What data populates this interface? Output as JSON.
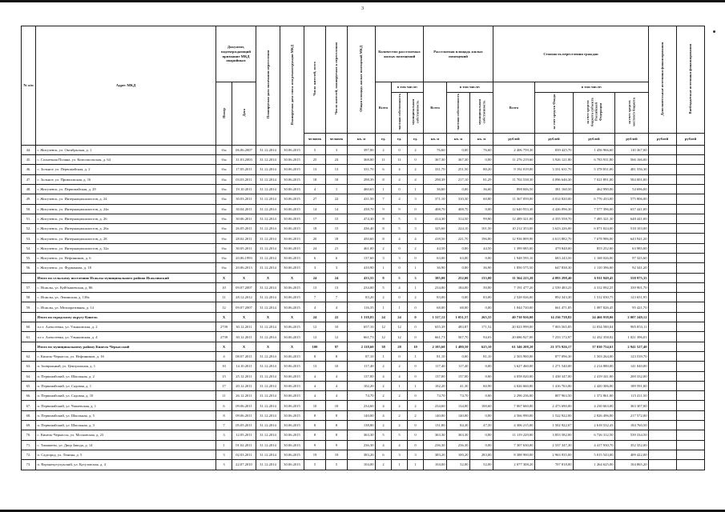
{
  "page": {
    "number": "3"
  },
  "table": {
    "headers": {
      "num": "№ п/п",
      "address": "Адрес МКД",
      "doc_group": "Документ, подтверждающий признание МКД аварийным",
      "doc_number": "Номер",
      "doc_date": "Дата",
      "planned_end_date": "Планируемая дата окончания переселения",
      "planned_demolition_date": "Планируемая дата сноса или реконструкции МКД",
      "residents_total": "Число жителей, всего",
      "residents_planned": "Число жителей, планируемых к переселению",
      "mkd_area": "Общая площадь жилых помещений МКД",
      "count_group": "Количество расселяемых жилых помещений",
      "area_group": "Расселяемая площадь жилых помещений",
      "cost_group": "Стоимость переселения граждан",
      "vsego": "Всего",
      "incl": "в том числе:",
      "private_prop": "частная собственность",
      "municipal_prop": "муниципальная собственность",
      "cost_fund": "за счет средств Фонда",
      "cost_subject": "за счет средств бюджета субъекта Российской Федерации",
      "cost_local": "за счет средств местного бюджета",
      "additional_sources": "Дополнительные источники финансирования",
      "extrabudget_sources": "Внебюджетные источники финансирования",
      "unit_person": "человек",
      "unit_sqm": "кв. м",
      "unit_ed": "ед.",
      "unit_rub": "рублей"
    },
    "rows": [
      {
        "n": "44.",
        "address": "г. Жигулевск, ул. Октябрьская, д. 1",
        "bold": false,
        "cells": [
          "б/н",
          "06.06.2007",
          "31.12.2014",
          "30.06.2015",
          "5",
          "3",
          "397,00",
          "2",
          "0",
          "2",
          "76,60",
          "0,00",
          "76,60",
          "2 406 759,30",
          "839 425,70",
          "1 456 966,60",
          "110 367,00",
          "",
          ""
        ]
      },
      {
        "n": "45.",
        "address": "с. Солнечная Поляна, ул. Комсомольская, д. 64",
        "bold": false,
        "cells": [
          "б/н",
          "31.03.2003",
          "31.12.2014",
          "30.06.2015",
          "25",
          "24",
          "368,00",
          "11",
          "11",
          "0",
          "367,30",
          "367,30",
          "0,00",
          "11 276 219,60",
          "3 926 121,80",
          "6 783 931,80",
          "566 166,00",
          "",
          ""
        ]
      },
      {
        "n": "46.",
        "address": "с. Зольное, ул. Первомайская, д. 2",
        "bold": false,
        "cells": [
          "б/н",
          "17.05.2011",
          "31.12.2014",
          "30.06.2015",
          "13",
          "13",
          "331,70",
          "6",
          "4",
          "2",
          "331,70",
          "251,50",
          "80,20",
          "9 192 019,00",
          "3 331 631,70",
          "5 378 831,00",
          "481 556,30",
          "",
          ""
        ]
      },
      {
        "n": "47.",
        "address": "с. Зольное, ул. Приволжская, д. 16",
        "bold": false,
        "cells": [
          "б/н",
          "03.03.2011",
          "31.12.2014",
          "30.06.2015",
          "18",
          "18",
          "298,39",
          "8",
          "4",
          "4",
          "298,39",
          "217,10",
          "81,29",
          "11 702 538,30",
          "4 096 646,30",
          "7 021 891,00",
          "584 001,00",
          "",
          ""
        ]
      },
      {
        "n": "48.",
        "address": "г. Жигулевск, ул. Первомайская, д. 29",
        "bold": false,
        "cells": [
          "б/н",
          "19.10.2011",
          "31.12.2014",
          "30.06.2015",
          "4",
          "1",
          "460,63",
          "1",
          "0",
          "1",
          "36,60",
          "0,00",
          "36,60",
          "898 846,50",
          "381 160,50",
          "462 990,00",
          "54 696,00",
          "",
          ""
        ]
      },
      {
        "n": "49.",
        "address": "г. Жигулевск, ул. Интернационалистов, д. 24",
        "bold": false,
        "cells": [
          "б/н",
          "30.03.2011",
          "31.12.2014",
          "30.06.2015",
          "27",
          "22",
          "431,50",
          "7",
          "4",
          "3",
          "371,10",
          "310,30",
          "60,80",
          "11 367 059,00",
          "4 014 820,00",
          "6 776 433,00",
          "575 806,00",
          "",
          ""
        ]
      },
      {
        "n": "50.",
        "address": "г. Жигулевск, ул. Интернационалистов, д. 24а",
        "bold": false,
        "cells": [
          "б/н",
          "30.04.2011",
          "31.12.2014",
          "30.06.2015",
          "14",
          "14",
          "438,70",
          "9",
          "9",
          "0",
          "408,70",
          "408,70",
          "0,00",
          "12 640 933,30",
          "4 426 096,30",
          "7 577 396,00",
          "637 441,00",
          "",
          ""
        ]
      },
      {
        "n": "51.",
        "address": "г. Жигулевск, ул. Интернационалистов, д. 26",
        "bold": false,
        "cells": [
          "б/н",
          "30.06.2011",
          "31.12.2014",
          "30.06.2015",
          "17",
          "15",
          "474,30",
          "8",
          "5",
          "3",
          "414,30",
          "314,50",
          "99,80",
          "12 489 321,00",
          "4 355 558,70",
          "7 485 321,30",
          "648 441,00",
          "",
          ""
        ]
      },
      {
        "n": "52.",
        "address": "г. Жигулевск, ул. Интернационалистов, д. 26а",
        "bold": false,
        "cells": [
          "б/н",
          "26.05.2011",
          "31.12.2014",
          "30.06.2015",
          "18",
          "15",
          "436,40",
          "8",
          "5",
          "3",
          "325,60",
          "224,10",
          "101,50",
          "10 212 353,00",
          "3 623 226,00",
          "6 071 024,00",
          "518 103,00",
          "",
          ""
        ]
      },
      {
        "n": "53.",
        "address": "г. Жигулевск, ул. Интернационалистов, д. 28",
        "bold": false,
        "cells": [
          "б/н",
          "28.02.2011",
          "31.12.2014",
          "30.06.2015",
          "20",
          "18",
          "450,60",
          "8",
          "4",
          "4",
          "418,50",
          "221,70",
          "196,80",
          "12 936 809,90",
          "4 613 882,70",
          "7 678 986,00",
          "643 941,20",
          "",
          ""
        ]
      },
      {
        "n": "54.",
        "address": "г. Жигулевск, ул. Интернационалистов, д. 32а",
        "bold": false,
        "cells": [
          "б/н",
          "30.05.2011",
          "31.12.2014",
          "30.06.2015",
          "24",
          "21",
          "461,00",
          "2",
          "0",
          "2",
          "44,50",
          "0,00",
          "44,50",
          "1 399 085,00",
          "479 848,00",
          "855 252,00",
          "63 985,00",
          "",
          ""
        ]
      },
      {
        "n": "55.",
        "address": "г. Жигулевск, ул. Нефтяников, д. 6",
        "bold": false,
        "cells": [
          "б/н",
          "20.06.1993",
          "31.12.2014",
          "30.06.2015",
          "6",
          "6",
          "137,60",
          "3",
          "3",
          "0",
          "63,00",
          "63,00",
          "0,00",
          "1 948 595,10",
          "683 243,50",
          "1 168 026,00",
          "97 325,60",
          "",
          ""
        ]
      },
      {
        "n": "56.",
        "address": "г. Жигулевск, ул. Фурманова, д. 18",
        "bold": false,
        "cells": [
          "б/н",
          "20.06.2013",
          "31.12.2014",
          "30.06.2015",
          "3",
          "3",
          "410,90",
          "1",
          "0",
          "1",
          "36,90",
          "0,00",
          "36,90",
          "1 850 575,50",
          "647 838,30",
          "1 110 396,00",
          "92 341,20",
          "",
          ""
        ]
      },
      {
        "n": "",
        "address": "Итого по сельскому поселению Исаклы муниципального района Исаклинский",
        "bold": true,
        "cells": [
          "X",
          "X",
          "X",
          "X",
          "24",
          "24",
          "433,55",
          "8",
          "5",
          "3",
          "385,00",
          "252,00",
          "133,00",
          "11 564 223,20",
          "4 093 298,40",
          "6 911 949,45",
          "558 975,35",
          "",
          ""
        ]
      },
      {
        "n": "57.",
        "address": "с. Исаклы, ул. Куйбышевская, д. 86",
        "bold": false,
        "cells": [
          "10",
          "09.07.2007",
          "31.12.2014",
          "30.06.2015",
          "13",
          "13",
          "234,00",
          "5",
          "4",
          "1",
          "234,00",
          "184,00",
          "50,00",
          "7 191 477,20",
          "2 539 483,25",
          "4 312 092,25",
          "339 901,70",
          "",
          ""
        ]
      },
      {
        "n": "58.",
        "address": "с. Исаклы, ул. Ленинская, д. 138а",
        "bold": false,
        "cells": [
          "11",
          "28.12.2012",
          "31.12.2014",
          "30.06.2015",
          "7",
          "7",
          "83,20",
          "2",
          "0",
          "2",
          "83,00",
          "0,00",
          "83,00",
          "2 528 026,00",
          "892 343,30",
          "1 512 030,75",
          "123 651,95",
          "",
          ""
        ]
      },
      {
        "n": "59.",
        "address": "с. Исаклы, ул. Мелиоративная, д. 14",
        "bold": false,
        "cells": [
          "12",
          "09.07.2007",
          "31.12.2014",
          "30.06.2015",
          "4",
          "4",
          "116,35",
          "1",
          "1",
          "0",
          "68,00",
          "68,00",
          "0,00",
          "1 844 720,00",
          "661 471,85",
          "1 087 826,45",
          "95 421,70",
          "",
          ""
        ]
      },
      {
        "n": "",
        "address": "Итого по городскому округу Кинель",
        "bold": true,
        "cells": [
          "X",
          "X",
          "X",
          "X",
          "24",
          "22",
          "1 318,83",
          "24",
          "24",
          "0",
          "1 317,12",
          "1 051,57",
          "265,55",
          "40 710 926,00",
          "14 236 738,82",
          "24 466 938,06",
          "2 007 249,12",
          "",
          ""
        ]
      },
      {
        "n": "60.",
        "address": "п.г.т. Алексеевка, ул. Ульяновская, д. 2",
        "bold": false,
        "cells": [
          "2739",
          "30.12.2011",
          "31.12.2014",
          "30.06.2015",
          "12",
          "10",
          "657,10",
          "12",
          "12",
          "0",
          "655,39",
          "483,87",
          "171,52",
          "20 023 999,00",
          "7 003 565,85",
          "12 034 580,04",
          "985 853,11",
          "",
          ""
        ]
      },
      {
        "n": "61.",
        "address": "п.г.т. Алексеевка, ул. Ульяновская, д. 4",
        "bold": false,
        "cells": [
          "2739",
          "30.12.2011",
          "31.12.2014",
          "30.06.2015",
          "12",
          "12",
          "661,73",
          "12",
          "12",
          "0",
          "661,73",
          "567,70",
          "94,03",
          "20 686 927,00",
          "7 233 172,97",
          "12 432 358,02",
          "1 021 396,01",
          "",
          ""
        ]
      },
      {
        "n": "",
        "address": "Итого по муниципальному району Кинель-Черкасский",
        "bold": true,
        "cells": [
          "X",
          "X",
          "X",
          "X",
          "100",
          "97",
          "2 118,60",
          "38",
          "28",
          "10",
          "2 105,60",
          "1 480,50",
          "625,10",
          "61 346 208,20",
          "21 373 926,17",
          "37 030 754,63",
          "2 941 527,40",
          "",
          ""
        ]
      },
      {
        "n": "62.",
        "address": "с. Кинель-Черкассы, ул. Нефтяников, д. 16",
        "bold": false,
        "cells": [
          "4",
          "08.07.2011",
          "31.12.2014",
          "30.06.2015",
          "8",
          "8",
          "87,10",
          "1",
          "0",
          "1",
          "81,10",
          "0,00",
          "81,10",
          "2 503 900,00",
          "877 096,30",
          "1 503 264,00",
          "123 539,70",
          "",
          ""
        ]
      },
      {
        "n": "63.",
        "address": "п. Заовражный, ул. Центральная, д. 1",
        "bold": false,
        "cells": [
          "10",
          "14.10.2011",
          "31.12.2014",
          "30.06.2015",
          "13",
          "10",
          "117,40",
          "2",
          "2",
          "0",
          "117,40",
          "117,40",
          "0,00",
          "3 627 460,00",
          "1 271 540,00",
          "2 214 880,00",
          "141 040,00",
          "",
          ""
        ]
      },
      {
        "n": "64.",
        "address": "п. Первомайский, ул. Школьная, д. 2",
        "bold": false,
        "cells": [
          "15",
          "25.12.2011",
          "31.12.2014",
          "30.06.2015",
          "4",
          "4",
          "137,00",
          "4",
          "4",
          "0",
          "137,00",
          "137,00",
          "0,00",
          "4 058 020,00",
          "1 438 347,00",
          "2 419 341,00",
          "200 332,00",
          "",
          ""
        ]
      },
      {
        "n": "65.",
        "address": "п. Первомайский, ул. Садовая, д. 1",
        "bold": false,
        "cells": [
          "17",
          "20.12.2011",
          "31.12.2014",
          "30.06.2015",
          "4",
          "4",
          "102,20",
          "2",
          "1",
          "1",
          "102,20",
          "41,30",
          "60,90",
          "4 026 660,00",
          "1 416 763,00",
          "2 420 306,00",
          "189 591,00",
          "",
          ""
        ]
      },
      {
        "n": "66.",
        "address": "п. Первомайский, ул. Садовая, д. 10",
        "bold": false,
        "cells": [
          "11",
          "26.12.2011",
          "31.12.2014",
          "30.06.2015",
          "4",
          "4",
          "74,70",
          "2",
          "2",
          "0",
          "74,70",
          "74,70",
          "0,00",
          "2 296 236,00",
          "807 963,50",
          "1 372 861,00",
          "115 411,50",
          "",
          ""
        ]
      },
      {
        "n": "67.",
        "address": "п. Первомайский, ул. Чапаевская, д. 1",
        "bold": false,
        "cells": [
          "6",
          "09.06.2011",
          "31.12.2014",
          "30.06.2015",
          "10",
          "10",
          "234,60",
          "4",
          "2",
          "2",
          "234,60",
          "134,00",
          "100,60",
          "7 067 660,00",
          "2 473 690,00",
          "4 230 663,00",
          "363 307,00",
          "",
          ""
        ]
      },
      {
        "n": "68.",
        "address": "п. Первомайский, ул. Школьная, д. 5",
        "bold": false,
        "cells": [
          "8",
          "09.06.2011",
          "31.12.2014",
          "30.06.2015",
          "8",
          "8",
          "140,00",
          "4",
          "2",
          "2",
          "140,00",
          "140,00",
          "0,00",
          "4 566 990,00",
          "1 522 922,00",
          "2 826 496,00",
          "217 572,00",
          "",
          ""
        ]
      },
      {
        "n": "69.",
        "address": "п. Первомайский, ул. Школьная, д. 3",
        "bold": false,
        "cells": [
          "7",
          "05.05.2011",
          "31.12.2014",
          "30.06.2015",
          "8",
          "8",
          "138,80",
          "2",
          "2",
          "0",
          "131,80",
          "84,30",
          "47,50",
          "4 306 215,00",
          "1 502 922,07",
          "2 618 532,43",
          "184 760,50",
          "",
          ""
        ]
      },
      {
        "n": "70.",
        "address": "с. Кинель-Черкассы, ул. Московская, д. 23",
        "bold": false,
        "cells": [
          "3",
          "12.05.2011",
          "31.12.2014",
          "30.06.2015",
          "8",
          "8",
          "363,30",
          "5",
          "5",
          "0",
          "363,30",
          "363,30",
          "0,00",
          "11 119 229,00",
          "3 853 582,00",
          "6 726 312,50",
          "539 334,50",
          "",
          ""
        ]
      },
      {
        "n": "71.",
        "address": "с. Тимашево, ул. Двор Завода, д. 14",
        "bold": false,
        "cells": [
          "1",
          "01.02.2011",
          "31.12.2014",
          "30.06.2015",
          "9",
          "9",
          "236,30",
          "4",
          "4",
          "0",
          "236,30",
          "236,30",
          "0,00",
          "7 307 630,00",
          "2 537 347,30",
          "4 417 930,70",
          "352 352,00",
          "",
          ""
        ]
      },
      {
        "n": "72.",
        "address": "п. Садгород, ул. Ленина, д. 5",
        "bold": false,
        "cells": [
          "3",
          "02.03.2011",
          "31.12.2014",
          "30.06.2015",
          "19",
          "19",
          "383,20",
          "6",
          "3",
          "3",
          "383,20",
          "100,20",
          "283,00",
          "8 388 900,00",
          "2 963 935,00",
          "5 015 543,00",
          "409 422,00",
          "",
          ""
        ]
      },
      {
        "n": "73.",
        "address": "п. Верхнекутулукский, ул. Кутузовская, д. 4",
        "bold": false,
        "cells": [
          "3",
          "22.07.2010",
          "31.12.2014",
          "30.06.2015",
          "5",
          "5",
          "104,00",
          "2",
          "1",
          "1",
          "104,00",
          "52,00",
          "52,00",
          "2 077 308,20",
          "707 818,00",
          "1 264 625,00",
          "104 865,20",
          "",
          ""
        ]
      }
    ]
  }
}
